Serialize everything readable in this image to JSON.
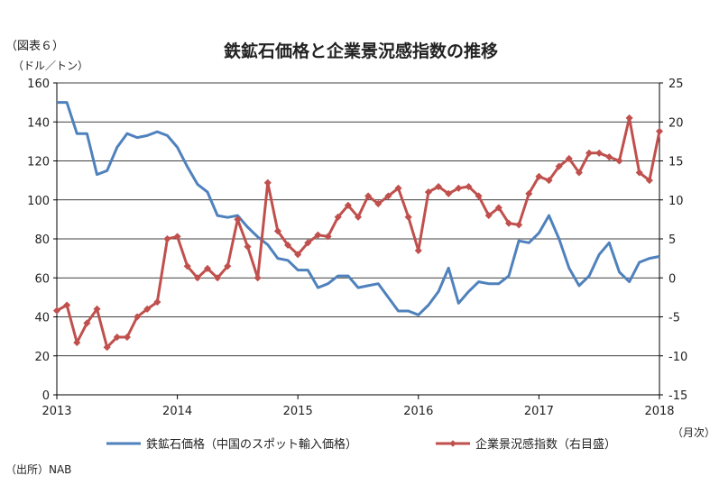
{
  "figure_label": "（図表６）",
  "source_note": "（出所）NAB",
  "chart_data": {
    "type": "line",
    "title": "鉄鉱石価格と企業景況感指数の推移",
    "left_axis": {
      "unit_label": "（ドル／トン）",
      "ylim": [
        0,
        160
      ],
      "ticks": [
        "0",
        "20",
        "40",
        "60",
        "80",
        "100",
        "120",
        "140",
        "160"
      ]
    },
    "right_axis": {
      "ylim": [
        -15,
        25
      ],
      "ticks": [
        "-15",
        "-10",
        "-5",
        "0",
        "5",
        "10",
        "15",
        "20",
        "25"
      ]
    },
    "x_axis": {
      "unit_label": "（月次）",
      "range": [
        2013.0,
        2018.0
      ],
      "ticks": [
        "2013",
        "2014",
        "2015",
        "2016",
        "2017",
        "2018"
      ]
    },
    "grid": true,
    "legend_position": "bottom",
    "series": [
      {
        "name": "鉄鉱石価格（中国のスポット輸入価格）",
        "axis": "left",
        "color": "#4f81bd",
        "marker": "none",
        "x": [
          "2013-01",
          "2013-02",
          "2013-03",
          "2013-04",
          "2013-05",
          "2013-06",
          "2013-07",
          "2013-08",
          "2013-09",
          "2013-10",
          "2013-11",
          "2013-12",
          "2014-01",
          "2014-02",
          "2014-03",
          "2014-04",
          "2014-05",
          "2014-06",
          "2014-07",
          "2014-08",
          "2014-09",
          "2014-10",
          "2014-11",
          "2014-12",
          "2015-01",
          "2015-02",
          "2015-03",
          "2015-04",
          "2015-05",
          "2015-06",
          "2015-07",
          "2015-08",
          "2015-09",
          "2015-10",
          "2015-11",
          "2015-12",
          "2016-01",
          "2016-02",
          "2016-03",
          "2016-04",
          "2016-05",
          "2016-06",
          "2016-07",
          "2016-08",
          "2016-09",
          "2016-10",
          "2016-11",
          "2016-12",
          "2017-01",
          "2017-02",
          "2017-03",
          "2017-04",
          "2017-05",
          "2017-06",
          "2017-07",
          "2017-08",
          "2017-09",
          "2017-10",
          "2017-11",
          "2017-12",
          "2018-01"
        ],
        "values": [
          150,
          150,
          134,
          134,
          113,
          115,
          127,
          134,
          132,
          133,
          135,
          133,
          127,
          117,
          108,
          104,
          92,
          91,
          92,
          86,
          81,
          77,
          70,
          69,
          64,
          64,
          55,
          57,
          61,
          61,
          55,
          56,
          57,
          50,
          43,
          43,
          41,
          46,
          53,
          65,
          47,
          53,
          58,
          57,
          57,
          61,
          79,
          78,
          83,
          92,
          80,
          65,
          56,
          61,
          72,
          78,
          63,
          58,
          68,
          70,
          71
        ]
      },
      {
        "name": "企業景況感指数（右目盛）",
        "axis": "right",
        "color": "#c0504d",
        "marker": "diamond",
        "x": [
          "2013-01",
          "2013-02",
          "2013-03",
          "2013-04",
          "2013-05",
          "2013-06",
          "2013-07",
          "2013-08",
          "2013-09",
          "2013-10",
          "2013-11",
          "2013-12",
          "2014-01",
          "2014-02",
          "2014-03",
          "2014-04",
          "2014-05",
          "2014-06",
          "2014-07",
          "2014-08",
          "2014-09",
          "2014-10",
          "2014-11",
          "2014-12",
          "2015-01",
          "2015-02",
          "2015-03",
          "2015-04",
          "2015-05",
          "2015-06",
          "2015-07",
          "2015-08",
          "2015-09",
          "2015-10",
          "2015-11",
          "2015-12",
          "2016-01",
          "2016-02",
          "2016-03",
          "2016-04",
          "2016-05",
          "2016-06",
          "2016-07",
          "2016-08",
          "2016-09",
          "2016-10",
          "2016-11",
          "2016-12",
          "2017-01",
          "2017-02",
          "2017-03",
          "2017-04",
          "2017-05",
          "2017-06",
          "2017-07",
          "2017-08",
          "2017-09",
          "2017-10",
          "2017-11",
          "2017-12",
          "2018-01"
        ],
        "values": [
          -4.2,
          -3.5,
          -8.3,
          -5.8,
          -4,
          -8.9,
          -7.6,
          -7.6,
          -5,
          -4,
          -3.1,
          5,
          5.3,
          1.5,
          0,
          1.2,
          0,
          1.5,
          7.5,
          4,
          0,
          12.2,
          6,
          4.2,
          3,
          4.5,
          5.5,
          5.3,
          7.8,
          9.3,
          7.8,
          10.5,
          9.5,
          10.5,
          11.5,
          7.8,
          3.5,
          11,
          11.7,
          10.8,
          11.5,
          11.7,
          10.5,
          8,
          9,
          7,
          6.8,
          10.8,
          13,
          12.5,
          14.3,
          15.3,
          13.5,
          16,
          16,
          15.5,
          15,
          20.5,
          13.5,
          12.5,
          18.8
        ]
      }
    ]
  }
}
